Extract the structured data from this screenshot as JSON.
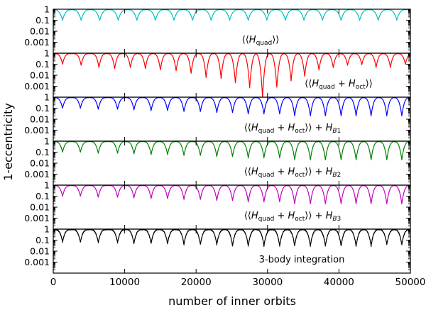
{
  "chart_data": {
    "type": "line",
    "xlabel": "number of inner orbits",
    "ylabel": "1-eccentricity",
    "xlim": [
      0,
      50000
    ],
    "xticks": [
      0,
      10000,
      20000,
      30000,
      40000,
      50000
    ],
    "xtick_labels": [
      "0",
      "10000",
      "20000",
      "30000",
      "40000",
      "50000"
    ],
    "ylim": [
      0.0001,
      1
    ],
    "yscale": "log",
    "yticks": [
      1,
      0.1,
      0.01,
      0.001
    ],
    "ytick_labels": [
      "1",
      "0.1",
      "0.01",
      "0.001"
    ],
    "grid": false,
    "panels": [
      {
        "label": "⟨⟨H_quad⟩⟩",
        "label_html": "⟨⟨<tspan font-style='italic'>H</tspan><tspan dy='3' font-size='9'>quad</tspan><tspan dy='-3'>⟩⟩</tspan>",
        "color": "#00bfbf",
        "period": 2600,
        "minima_x": [
          1300,
          3900,
          6500,
          9100,
          11700,
          14300,
          16900,
          19500,
          22100,
          24700,
          27300,
          29900,
          32500,
          35100,
          37700,
          40300,
          42900,
          45500,
          48100
        ],
        "minima_y": [
          0.1,
          0.1,
          0.1,
          0.1,
          0.1,
          0.1,
          0.1,
          0.1,
          0.1,
          0.1,
          0.1,
          0.1,
          0.1,
          0.1,
          0.1,
          0.1,
          0.1,
          0.1,
          0.1
        ],
        "max_y": 0.9
      },
      {
        "label": "⟨⟨H_quad + H_oct⟩⟩",
        "label_html": "⟨⟨<tspan font-style='italic'>H</tspan><tspan dy='3' font-size='9'>quad</tspan><tspan dy='-3'> + </tspan><tspan font-style='italic'>H</tspan><tspan dy='3' font-size='9'>oct</tspan><tspan dy='-3'>⟩⟩</tspan>",
        "color": "#ff0000",
        "period": 2150,
        "minima_x": [
          1300,
          3900,
          6400,
          8600,
          10800,
          12900,
          15000,
          17200,
          19300,
          21400,
          23500,
          25500,
          27500,
          29300,
          31300,
          33300,
          35200,
          37200,
          39200,
          41200,
          43200,
          45200,
          47200,
          49300
        ],
        "minima_y": [
          0.1,
          0.08,
          0.05,
          0.04,
          0.05,
          0.04,
          0.03,
          0.025,
          0.015,
          0.006,
          0.005,
          0.002,
          0.0007,
          0.0001,
          0.0008,
          0.003,
          0.008,
          0.03,
          0.05,
          0.08,
          0.09,
          0.05,
          0.05,
          0.1
        ],
        "max_y": 0.9
      },
      {
        "label": "⟨⟨H_quad + H_oct⟩⟩ + H_B1",
        "label_html": "⟨⟨<tspan font-style='italic'>H</tspan><tspan dy='3' font-size='9'>quad</tspan><tspan dy='-3'> + </tspan><tspan font-style='italic'>H</tspan><tspan dy='3' font-size='9'>oct</tspan><tspan dy='-3'>⟩⟩ + </tspan><tspan font-style='italic'>H</tspan><tspan dy='3' font-size='9' font-style='italic'>B</tspan><tspan font-size='9'>1</tspan>",
        "color": "#0000ff",
        "period": 2250,
        "minima_x": [
          1300,
          3800,
          6300,
          9000,
          11300,
          13700,
          16000,
          18300,
          20600,
          22900,
          25100,
          27300,
          29500,
          31700,
          33800,
          36000,
          38100,
          40300,
          42400,
          44500,
          46700,
          48800
        ],
        "minima_y": [
          0.1,
          0.1,
          0.08,
          0.08,
          0.07,
          0.06,
          0.06,
          0.05,
          0.05,
          0.04,
          0.04,
          0.03,
          0.03,
          0.03,
          0.02,
          0.02,
          0.02,
          0.02,
          0.02,
          0.02,
          0.02,
          0.02
        ],
        "max_y": 0.9
      },
      {
        "label": "⟨⟨H_quad + H_oct⟩⟩ + H_B2",
        "label_html": "⟨⟨<tspan font-style='italic'>H</tspan><tspan dy='3' font-size='9'>quad</tspan><tspan dy='-3'> + </tspan><tspan font-style='italic'>H</tspan><tspan dy='3' font-size='9'>oct</tspan><tspan dy='-3'>⟩⟩ + </tspan><tspan font-style='italic'>H</tspan><tspan dy='3' font-size='9' font-style='italic'>B</tspan><tspan font-size='9'>2</tspan>",
        "color": "#008000",
        "period": 2250,
        "minima_x": [
          1300,
          3800,
          6300,
          9000,
          11300,
          13700,
          16000,
          18300,
          20600,
          22900,
          25100,
          27300,
          29500,
          31700,
          33800,
          36000,
          38100,
          40300,
          42400,
          44500,
          46700,
          48800
        ],
        "minima_y": [
          0.1,
          0.1,
          0.08,
          0.08,
          0.07,
          0.06,
          0.06,
          0.05,
          0.05,
          0.04,
          0.04,
          0.03,
          0.03,
          0.03,
          0.02,
          0.02,
          0.02,
          0.02,
          0.02,
          0.02,
          0.02,
          0.02
        ],
        "max_y": 0.9
      },
      {
        "label": "⟨⟨H_quad + H_oct⟩⟩ + H_B3",
        "label_html": "⟨⟨<tspan font-style='italic'>H</tspan><tspan dy='3' font-size='9'>quad</tspan><tspan dy='-3'> + </tspan><tspan font-style='italic'>H</tspan><tspan dy='3' font-size='9'>oct</tspan><tspan dy='-3'>⟩⟩ + </tspan><tspan font-style='italic'>H</tspan><tspan dy='3' font-size='9' font-style='italic'>B</tspan><tspan font-size='9'>3</tspan>",
        "color": "#bf00bf",
        "period": 2250,
        "minima_x": [
          1300,
          3800,
          6300,
          9000,
          11300,
          13700,
          16000,
          18300,
          20600,
          22900,
          25100,
          27300,
          29500,
          31700,
          33800,
          36000,
          38100,
          40300,
          42400,
          44500,
          46700,
          48800
        ],
        "minima_y": [
          0.1,
          0.1,
          0.08,
          0.08,
          0.07,
          0.06,
          0.06,
          0.05,
          0.05,
          0.04,
          0.04,
          0.03,
          0.03,
          0.03,
          0.02,
          0.02,
          0.02,
          0.02,
          0.02,
          0.02,
          0.02,
          0.02
        ],
        "max_y": 0.9
      },
      {
        "label": "3-body integration",
        "label_html": "3-body integration",
        "color": "#000000",
        "period": 2250,
        "minima_x": [
          1300,
          3800,
          6300,
          9000,
          11300,
          13700,
          16000,
          18300,
          20600,
          22900,
          25100,
          27300,
          29500,
          31700,
          33800,
          36000,
          38100,
          40300,
          42400,
          44500,
          46700,
          48800
        ],
        "minima_y": [
          0.07,
          0.07,
          0.06,
          0.06,
          0.05,
          0.05,
          0.05,
          0.04,
          0.04,
          0.04,
          0.03,
          0.03,
          0.03,
          0.03,
          0.03,
          0.03,
          0.03,
          0.03,
          0.03,
          0.03,
          0.04,
          0.04
        ],
        "max_y": 0.9,
        "noisy": true
      }
    ]
  }
}
